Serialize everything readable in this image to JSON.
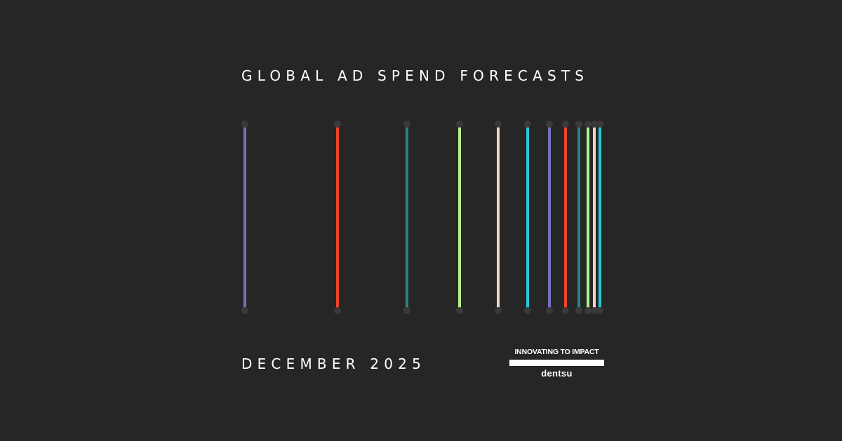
{
  "title": "GLOBAL AD SPEND FORECASTS",
  "date": "DECEMBER 2025",
  "logo": {
    "tagline": "INNOVATING TO IMPACT",
    "brand": "dentsu"
  },
  "stripes": {
    "colors": [
      "#7373bd",
      "#e8452b",
      "#2a8585",
      "#b4f08a",
      "#f6d2cd",
      "#2ac6d6",
      "#7373bd",
      "#e8452b",
      "#2a8585",
      "#b4f08a",
      "#f6d2cd",
      "#2ac6d6"
    ],
    "dot_color": "#3a3a3a",
    "background": "#262626"
  }
}
